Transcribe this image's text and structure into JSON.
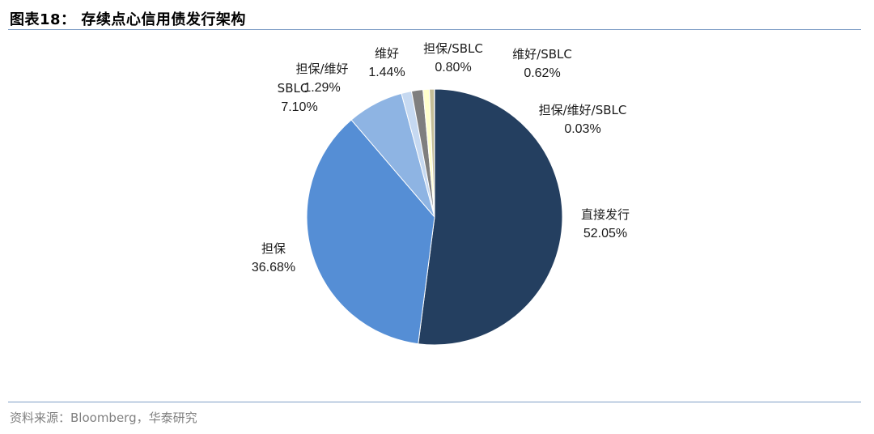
{
  "header": {
    "title": "图表18： 存续点心信用债发行架构"
  },
  "footer": {
    "source": "资料来源：Bloomberg，华泰研究"
  },
  "chart_data": {
    "type": "pie",
    "title": "",
    "start_angle_deg": 0,
    "direction": "clockwise",
    "slices": [
      {
        "name": "直接发行",
        "value": 52.05,
        "label": "52.05%",
        "color": "#243f60"
      },
      {
        "name": "担保",
        "value": 36.68,
        "label": "36.68%",
        "color": "#558ed5"
      },
      {
        "name": "SBLC",
        "value": 7.1,
        "label": "7.10%",
        "color": "#8eb4e3"
      },
      {
        "name": "担保/维好",
        "value": 1.29,
        "label": "1.29%",
        "color": "#c6d9f1"
      },
      {
        "name": "维好",
        "value": 1.44,
        "label": "1.44%",
        "color": "#7f7f7f"
      },
      {
        "name": "担保/SBLC",
        "value": 0.8,
        "label": "0.80%",
        "color": "#ffffcc"
      },
      {
        "name": "维好/SBLC",
        "value": 0.62,
        "label": "0.62%",
        "color": "#c4bd97"
      },
      {
        "name": "担保/维好/SBLC",
        "value": 0.03,
        "label": "0.03%",
        "color": "#1f3a5f"
      }
    ]
  }
}
